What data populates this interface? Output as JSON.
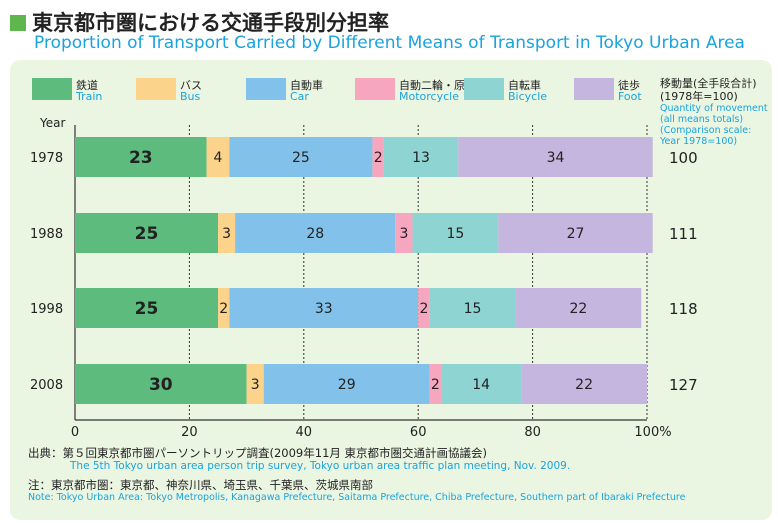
{
  "title_jp": "東京都市圏における交通手段別分担率",
  "title_en": "Proportion of Transport Carried by Different Means of Transport in Tokyo Urban Area",
  "legend": [
    {
      "jp": "鉄道",
      "en": "Train",
      "color": "#5dbb7e"
    },
    {
      "jp": "バス",
      "en": "Bus",
      "color": "#fbd38a"
    },
    {
      "jp": "自動車",
      "en": "Car",
      "color": "#82c2ea"
    },
    {
      "jp": "自動二輪・原付",
      "en": "Motorcycle",
      "color": "#f6a7bf"
    },
    {
      "jp": "自転車",
      "en": "Bicycle",
      "color": "#8dd4d2"
    },
    {
      "jp": "徒歩",
      "en": "Foot",
      "color": "#c4b6de"
    }
  ],
  "quantity_label": {
    "jp_line1": "移動量(全手段合計)",
    "jp_line2": "(1978年=100)",
    "en_line1": "Quantity of movement",
    "en_line2": "(all means totals)",
    "en_line3": "(Comparison scale:",
    "en_line4": "Year 1978=100)"
  },
  "year_header": "Year",
  "chart_data": {
    "type": "bar",
    "orientation": "horizontal",
    "stacked": true,
    "categories": [
      "1978",
      "1988",
      "1998",
      "2008"
    ],
    "series": [
      {
        "name": "Train",
        "values": [
          23,
          25,
          25,
          30
        ]
      },
      {
        "name": "Bus",
        "values": [
          4,
          3,
          2,
          3
        ]
      },
      {
        "name": "Car",
        "values": [
          25,
          28,
          33,
          29
        ]
      },
      {
        "name": "Motorcycle",
        "values": [
          2,
          3,
          2,
          2
        ]
      },
      {
        "name": "Bicycle",
        "values": [
          13,
          15,
          15,
          14
        ]
      },
      {
        "name": "Foot",
        "values": [
          34,
          27,
          22,
          22
        ]
      }
    ],
    "quantity": [
      100,
      111,
      118,
      127
    ],
    "xlim": [
      0,
      100
    ],
    "xticks": [
      "0",
      "20",
      "40",
      "60",
      "80",
      "100%"
    ],
    "grid": true
  },
  "source_jp": "出典：第５回東京都市圏パーソントリップ調査(2009年11月 東京都市圏交通計画協議会)",
  "source_en": "The 5th Tokyo urban area person trip survey, Tokyo urban area traffic plan meeting, Nov. 2009.",
  "note_jp": "注：東京都市圏：東京都、神奈川県、埼玉県、千葉県、茨城県南部",
  "note_en": "Note: Tokyo Urban Area: Tokyo Metropolis, Kanagawa Prefecture, Saitama Prefecture, Chiba Prefecture, Southern part of Ibaraki Prefecture"
}
